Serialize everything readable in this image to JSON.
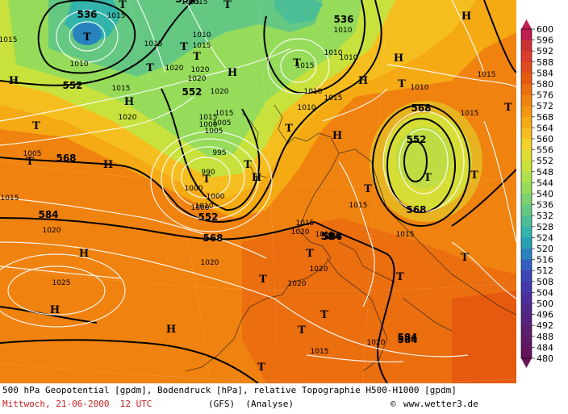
{
  "footer": {
    "line1": "500 hPa Geopotential [gpdm], Bodendruck [hPa], relative Topographie H500-H1000 [gpdm]",
    "date": "Mittwoch, 21-06-2000  12 UTC",
    "model": "(GFS)  (Analyse)",
    "copyright_symbol": "©",
    "source": "www.wetter3.de"
  },
  "legend": {
    "ticks": [
      "600",
      "596",
      "592",
      "588",
      "584",
      "580",
      "576",
      "572",
      "568",
      "564",
      "560",
      "556",
      "552",
      "548",
      "544",
      "540",
      "536",
      "532",
      "528",
      "524",
      "520",
      "516",
      "512",
      "508",
      "504",
      "500",
      "496",
      "492",
      "488",
      "484",
      "480"
    ],
    "colors": [
      "#be1e50",
      "#cd3232",
      "#dc3c2d",
      "#e14b1e",
      "#e65a0f",
      "#eb6e0f",
      "#f0820f",
      "#f5960f",
      "#f5aa14",
      "#f5be1e",
      "#f0d228",
      "#e1dc32",
      "#c8e13c",
      "#afe14b",
      "#96dc5a",
      "#7dd26e",
      "#64c882",
      "#4bbe96",
      "#32b4aa",
      "#28a0b4",
      "#2882be",
      "#325fbe",
      "#3c46b4",
      "#4637aa",
      "#4b2d9b",
      "#50288c",
      "#55237d",
      "#5a1e6e",
      "#5f1964",
      "#64145a",
      "#691450"
    ]
  },
  "map": {
    "geopotential_labels": [
      "536",
      "552",
      "552",
      "536",
      "552",
      "568",
      "552",
      "568",
      "584",
      "584",
      "568",
      "552",
      "584",
      "568",
      "584",
      "584"
    ],
    "pressure_labels": [
      "1015",
      "1010",
      "1015",
      "1020",
      "1015",
      "1020",
      "1020",
      "1020",
      "1010",
      "1015",
      "1015",
      "1005",
      "1000",
      "1005",
      "1010",
      "1010",
      "1000",
      "1010",
      "1010",
      "1015",
      "1010",
      "1015",
      "1005",
      "1005",
      "995",
      "990",
      "1000",
      "1000",
      "1015",
      "1020",
      "1015",
      "1010",
      "1020",
      "1015",
      "1015",
      "1010",
      "1015",
      "1020",
      "1020",
      "1015",
      "1025",
      "1020",
      "1015",
      "1015",
      "1020",
      "1010",
      "1015",
      "1020",
      "1015"
    ],
    "highs": [
      "H",
      "H",
      "H",
      "H",
      "H",
      "H",
      "H",
      "H",
      "H",
      "H",
      "H",
      "H"
    ],
    "lows": [
      "T",
      "T",
      "T",
      "T",
      "T",
      "T",
      "T",
      "T",
      "T",
      "T",
      "T",
      "T",
      "T",
      "T",
      "T",
      "T",
      "T",
      "T",
      "T",
      "T",
      "T",
      "T",
      "T",
      "T"
    ]
  }
}
